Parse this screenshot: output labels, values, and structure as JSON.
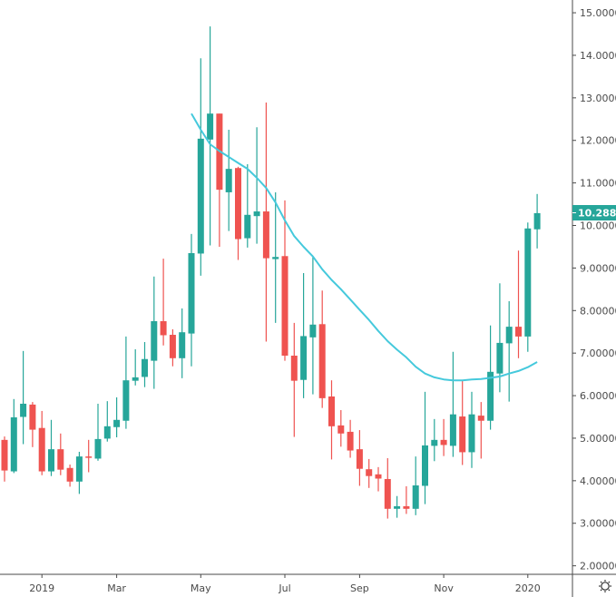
{
  "chart_data": {
    "type": "candlestick",
    "title": "",
    "xlabel": "",
    "ylabel": "",
    "ylim": [
      1.8,
      15.3
    ],
    "grid": false,
    "colors": {
      "up": "#26a69a",
      "down": "#ef5350",
      "moving_average": "#45c9dc",
      "axis": "#4a4a4a"
    },
    "y_ticks": [
      "15.00000",
      "14.00000",
      "13.00000",
      "12.00000",
      "11.00000",
      "10.00000",
      "9.00000",
      "8.00000",
      "7.00000",
      "6.00000",
      "5.00000",
      "4.00000",
      "3.00000",
      "2.00000"
    ],
    "x_ticks": [
      {
        "label": "2019",
        "date": "2019-01-01"
      },
      {
        "label": "Mar",
        "date": "2019-03-01"
      },
      {
        "label": "May",
        "date": "2019-05-01"
      },
      {
        "label": "Jul",
        "date": "2019-07-01"
      },
      {
        "label": "Sep",
        "date": "2019-09-01"
      },
      {
        "label": "Nov",
        "date": "2019-11-01"
      },
      {
        "label": "2020",
        "date": "2020-01-01"
      }
    ],
    "last_price": "10.2886",
    "candles_columns": [
      "date",
      "open",
      "high",
      "low",
      "close"
    ],
    "candles": [
      [
        "2018-12-03",
        4.96,
        5.04,
        3.98,
        4.24
      ],
      [
        "2018-12-10",
        4.22,
        5.92,
        4.18,
        5.49
      ],
      [
        "2018-12-17",
        5.5,
        7.05,
        4.86,
        5.81
      ],
      [
        "2018-12-24",
        5.79,
        5.85,
        4.79,
        5.2
      ],
      [
        "2018-12-31",
        5.24,
        5.64,
        4.13,
        4.22
      ],
      [
        "2019-01-07",
        4.22,
        5.43,
        4.11,
        4.74
      ],
      [
        "2019-01-14",
        4.74,
        5.11,
        4.13,
        4.26
      ],
      [
        "2019-01-21",
        4.3,
        4.38,
        3.86,
        3.98
      ],
      [
        "2019-01-28",
        3.98,
        4.68,
        3.69,
        4.57
      ],
      [
        "2019-02-04",
        4.57,
        4.96,
        4.2,
        4.54
      ],
      [
        "2019-02-11",
        4.52,
        5.81,
        4.47,
        4.98
      ],
      [
        "2019-02-18",
        4.99,
        5.87,
        4.92,
        5.28
      ],
      [
        "2019-02-25",
        5.26,
        5.96,
        5.02,
        5.43
      ],
      [
        "2019-03-04",
        5.41,
        7.39,
        5.22,
        6.36
      ],
      [
        "2019-03-11",
        6.35,
        7.09,
        6.24,
        6.43
      ],
      [
        "2019-03-18",
        6.44,
        7.26,
        6.2,
        6.86
      ],
      [
        "2019-03-25",
        6.82,
        8.8,
        6.16,
        7.75
      ],
      [
        "2019-04-01",
        7.75,
        9.22,
        7.18,
        7.42
      ],
      [
        "2019-04-08",
        7.43,
        7.56,
        6.69,
        6.88
      ],
      [
        "2019-04-15",
        6.88,
        8.05,
        6.41,
        7.49
      ],
      [
        "2019-04-22",
        7.46,
        9.8,
        6.69,
        9.35
      ],
      [
        "2019-04-29",
        9.34,
        13.93,
        8.82,
        12.04
      ],
      [
        "2019-05-06",
        12.02,
        14.68,
        9.53,
        12.63
      ],
      [
        "2019-05-13",
        12.63,
        12.63,
        9.5,
        10.84
      ],
      [
        "2019-05-20",
        10.78,
        12.25,
        9.87,
        11.33
      ],
      [
        "2019-05-27",
        11.35,
        11.38,
        9.19,
        9.68
      ],
      [
        "2019-06-03",
        9.7,
        11.44,
        9.48,
        10.25
      ],
      [
        "2019-06-10",
        10.22,
        12.31,
        9.57,
        10.33
      ],
      [
        "2019-06-17",
        10.33,
        12.89,
        7.27,
        9.23
      ],
      [
        "2019-06-24",
        9.21,
        10.78,
        7.71,
        9.26
      ],
      [
        "2019-07-01",
        9.28,
        10.59,
        6.82,
        6.94
      ],
      [
        "2019-07-08",
        6.94,
        7.71,
        5.03,
        6.35
      ],
      [
        "2019-07-15",
        6.37,
        8.88,
        5.94,
        7.4
      ],
      [
        "2019-07-22",
        7.37,
        9.26,
        6.03,
        7.67
      ],
      [
        "2019-07-29",
        7.68,
        8.47,
        5.71,
        5.94
      ],
      [
        "2019-08-05",
        5.98,
        6.36,
        4.5,
        5.28
      ],
      [
        "2019-08-12",
        5.3,
        5.66,
        4.8,
        5.11
      ],
      [
        "2019-08-19",
        5.15,
        5.43,
        4.54,
        4.71
      ],
      [
        "2019-08-26",
        4.74,
        5.19,
        3.88,
        4.28
      ],
      [
        "2019-09-02",
        4.27,
        4.51,
        3.83,
        4.11
      ],
      [
        "2019-09-09",
        4.15,
        4.32,
        3.75,
        4.05
      ],
      [
        "2019-09-16",
        4.04,
        4.53,
        3.11,
        3.34
      ],
      [
        "2019-09-23",
        3.34,
        3.64,
        3.13,
        3.4
      ],
      [
        "2019-09-30",
        3.4,
        3.87,
        3.22,
        3.34
      ],
      [
        "2019-10-07",
        3.34,
        4.57,
        3.19,
        3.89
      ],
      [
        "2019-10-14",
        3.88,
        6.09,
        3.45,
        4.83
      ],
      [
        "2019-10-21",
        4.82,
        5.45,
        4.46,
        4.96
      ],
      [
        "2019-10-28",
        4.96,
        5.45,
        4.58,
        4.84
      ],
      [
        "2019-11-04",
        4.82,
        7.03,
        4.56,
        5.56
      ],
      [
        "2019-11-11",
        5.51,
        6.36,
        4.37,
        4.67
      ],
      [
        "2019-11-18",
        4.67,
        6.09,
        4.3,
        5.56
      ],
      [
        "2019-11-25",
        5.53,
        5.85,
        4.52,
        5.41
      ],
      [
        "2019-12-02",
        5.41,
        7.65,
        5.2,
        6.56
      ],
      [
        "2019-12-09",
        6.52,
        8.64,
        6.08,
        7.24
      ],
      [
        "2019-12-16",
        7.23,
        8.22,
        5.86,
        7.62
      ],
      [
        "2019-12-23",
        7.62,
        9.41,
        6.88,
        7.39
      ],
      [
        "2019-12-30",
        7.39,
        10.07,
        7.03,
        9.93
      ],
      [
        "2020-01-06",
        9.91,
        10.74,
        9.46,
        10.29
      ]
    ],
    "moving_average": [
      [
        "2019-04-22",
        12.63
      ],
      [
        "2019-04-29",
        12.25
      ],
      [
        "2019-05-06",
        11.91
      ],
      [
        "2019-05-13",
        11.75
      ],
      [
        "2019-05-20",
        11.61
      ],
      [
        "2019-05-27",
        11.47
      ],
      [
        "2019-06-03",
        11.33
      ],
      [
        "2019-06-10",
        11.12
      ],
      [
        "2019-06-17",
        10.88
      ],
      [
        "2019-06-24",
        10.54
      ],
      [
        "2019-07-01",
        10.12
      ],
      [
        "2019-07-08",
        9.75
      ],
      [
        "2019-07-15",
        9.5
      ],
      [
        "2019-07-22",
        9.27
      ],
      [
        "2019-07-29",
        8.97
      ],
      [
        "2019-08-05",
        8.72
      ],
      [
        "2019-08-12",
        8.5
      ],
      [
        "2019-08-19",
        8.26
      ],
      [
        "2019-08-26",
        8.02
      ],
      [
        "2019-09-02",
        7.78
      ],
      [
        "2019-09-09",
        7.52
      ],
      [
        "2019-09-16",
        7.28
      ],
      [
        "2019-09-23",
        7.08
      ],
      [
        "2019-09-30",
        6.9
      ],
      [
        "2019-10-07",
        6.68
      ],
      [
        "2019-10-14",
        6.52
      ],
      [
        "2019-10-21",
        6.43
      ],
      [
        "2019-10-28",
        6.38
      ],
      [
        "2019-11-04",
        6.36
      ],
      [
        "2019-11-11",
        6.36
      ],
      [
        "2019-11-18",
        6.38
      ],
      [
        "2019-11-25",
        6.39
      ],
      [
        "2019-12-02",
        6.42
      ],
      [
        "2019-12-09",
        6.45
      ],
      [
        "2019-12-16",
        6.52
      ],
      [
        "2019-12-23",
        6.58
      ],
      [
        "2019-12-30",
        6.67
      ],
      [
        "2020-01-06",
        6.79
      ]
    ]
  }
}
